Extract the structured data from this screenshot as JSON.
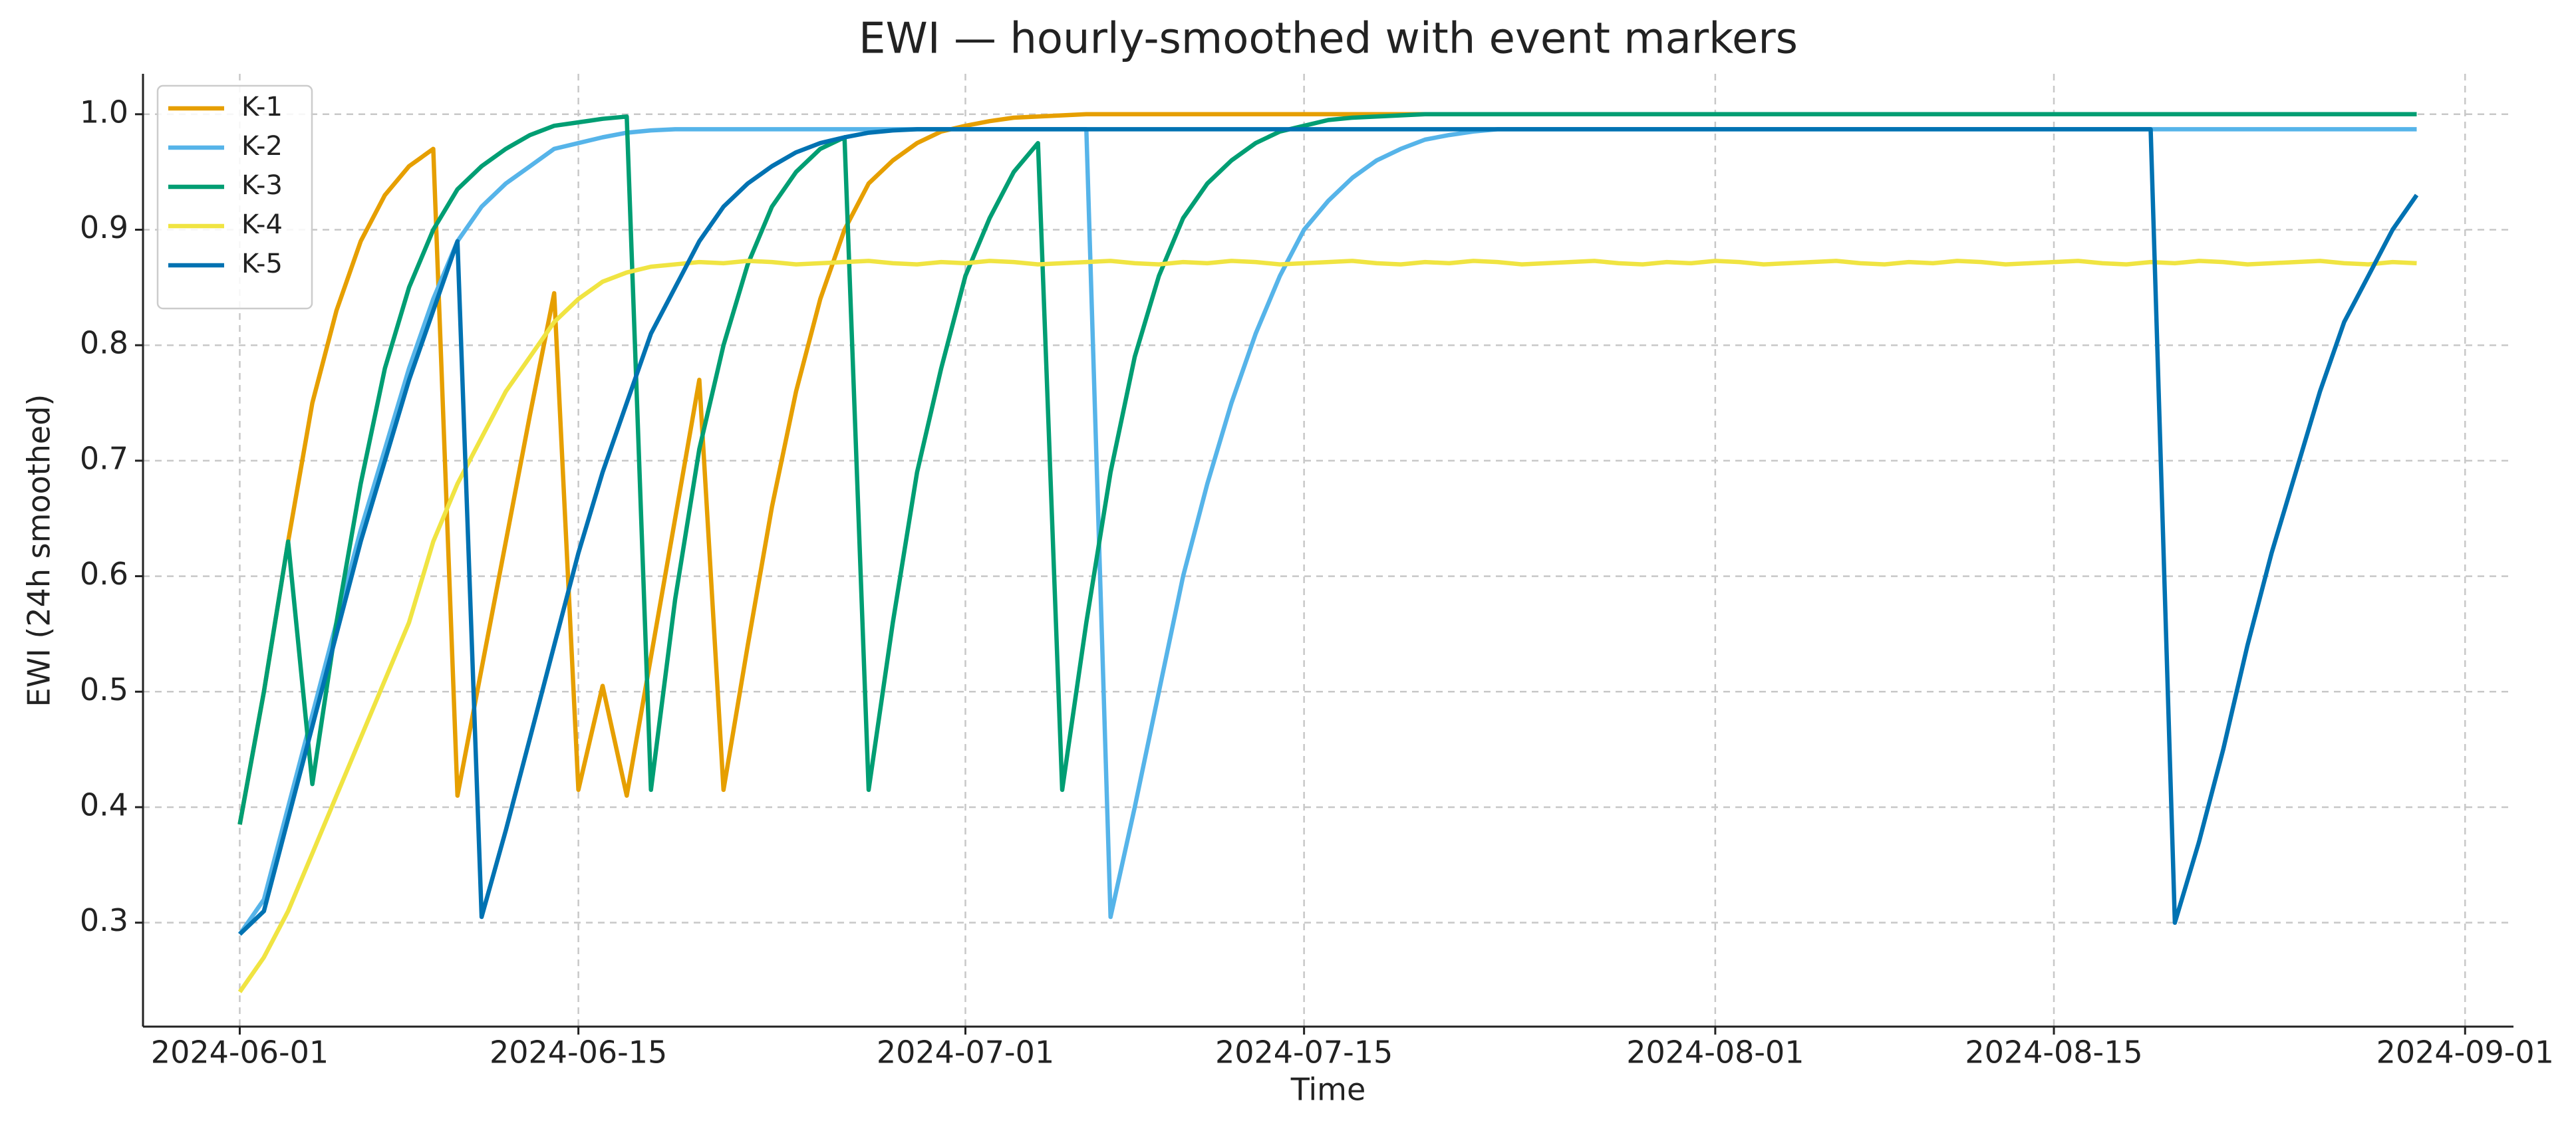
{
  "chart_data": {
    "type": "line",
    "title": "EWI — hourly-smoothed with event markers",
    "x_label": "Time",
    "y_label": "EWI (24h smoothed)",
    "x": [
      "2024-06-01",
      "2024-06-02",
      "2024-06-03",
      "2024-06-04",
      "2024-06-05",
      "2024-06-06",
      "2024-06-07",
      "2024-06-08",
      "2024-06-09",
      "2024-06-10",
      "2024-06-11",
      "2024-06-12",
      "2024-06-13",
      "2024-06-14",
      "2024-06-15",
      "2024-06-16",
      "2024-06-17",
      "2024-06-18",
      "2024-06-19",
      "2024-06-20",
      "2024-06-21",
      "2024-06-22",
      "2024-06-23",
      "2024-06-24",
      "2024-06-25",
      "2024-06-26",
      "2024-06-27",
      "2024-06-28",
      "2024-06-29",
      "2024-06-30",
      "2024-07-01",
      "2024-07-02",
      "2024-07-03",
      "2024-07-04",
      "2024-07-05",
      "2024-07-06",
      "2024-07-07",
      "2024-07-08",
      "2024-07-09",
      "2024-07-10",
      "2024-07-11",
      "2024-07-12",
      "2024-07-13",
      "2024-07-14",
      "2024-07-15",
      "2024-07-16",
      "2024-07-17",
      "2024-07-18",
      "2024-07-19",
      "2024-07-20",
      "2024-07-21",
      "2024-07-22",
      "2024-07-23",
      "2024-07-24",
      "2024-07-25",
      "2024-07-26",
      "2024-07-27",
      "2024-07-28",
      "2024-07-29",
      "2024-07-30",
      "2024-07-31",
      "2024-08-01",
      "2024-08-02",
      "2024-08-03",
      "2024-08-04",
      "2024-08-05",
      "2024-08-06",
      "2024-08-07",
      "2024-08-08",
      "2024-08-09",
      "2024-08-10",
      "2024-08-11",
      "2024-08-12",
      "2024-08-13",
      "2024-08-14",
      "2024-08-15",
      "2024-08-16",
      "2024-08-17",
      "2024-08-18",
      "2024-08-19",
      "2024-08-20",
      "2024-08-21",
      "2024-08-22",
      "2024-08-23",
      "2024-08-24",
      "2024-08-25",
      "2024-08-26",
      "2024-08-27",
      "2024-08-28",
      "2024-08-29",
      "2024-08-30"
    ],
    "series": [
      {
        "name": "K-1",
        "color": "#E69F00",
        "values": [
          0.385,
          0.5,
          0.63,
          0.75,
          0.83,
          0.89,
          0.93,
          0.955,
          0.97,
          0.41,
          0.52,
          0.63,
          0.74,
          0.845,
          0.415,
          0.505,
          0.41,
          0.53,
          0.65,
          0.77,
          0.415,
          0.54,
          0.66,
          0.76,
          0.84,
          0.9,
          0.94,
          0.96,
          0.975,
          0.985,
          0.99,
          0.994,
          0.997,
          0.998,
          0.999,
          1,
          1,
          1,
          1,
          1,
          1,
          1,
          1,
          1,
          1,
          1,
          1,
          1,
          1,
          1,
          1,
          1,
          1,
          1,
          1,
          1,
          1,
          1,
          1,
          1,
          1,
          1,
          1,
          1,
          1,
          1,
          1,
          1,
          1,
          1,
          1,
          1,
          1,
          1,
          1,
          1,
          1,
          1,
          1,
          1,
          1,
          1,
          1,
          1,
          1,
          1,
          1,
          1,
          1,
          1,
          1
        ]
      },
      {
        "name": "K-2",
        "color": "#56B4E9",
        "values": [
          0.29,
          0.32,
          0.4,
          0.48,
          0.56,
          0.64,
          0.71,
          0.78,
          0.84,
          0.89,
          0.92,
          0.94,
          0.955,
          0.97,
          0.975,
          0.98,
          0.984,
          0.986,
          0.987,
          0.987,
          0.987,
          0.987,
          0.987,
          0.987,
          0.987,
          0.987,
          0.987,
          0.987,
          0.987,
          0.987,
          0.987,
          0.987,
          0.987,
          0.987,
          0.987,
          0.987,
          0.305,
          0.4,
          0.5,
          0.6,
          0.68,
          0.75,
          0.81,
          0.86,
          0.9,
          0.925,
          0.945,
          0.96,
          0.97,
          0.978,
          0.982,
          0.985,
          0.987,
          0.987,
          0.987,
          0.987,
          0.987,
          0.987,
          0.987,
          0.987,
          0.987,
          0.987,
          0.987,
          0.987,
          0.987,
          0.987,
          0.987,
          0.987,
          0.987,
          0.987,
          0.987,
          0.987,
          0.987,
          0.987,
          0.987,
          0.987,
          0.987,
          0.987,
          0.987,
          0.987,
          0.987,
          0.987,
          0.987,
          0.987,
          0.987,
          0.987,
          0.987,
          0.987,
          0.987,
          0.987,
          0.987
        ]
      },
      {
        "name": "K-3",
        "color": "#009E73",
        "values": [
          0.385,
          0.5,
          0.63,
          0.42,
          0.56,
          0.68,
          0.78,
          0.85,
          0.9,
          0.935,
          0.955,
          0.97,
          0.982,
          0.99,
          0.993,
          0.996,
          0.998,
          0.415,
          0.58,
          0.71,
          0.8,
          0.87,
          0.92,
          0.95,
          0.97,
          0.98,
          0.415,
          0.56,
          0.69,
          0.78,
          0.86,
          0.91,
          0.95,
          0.975,
          0.415,
          0.56,
          0.69,
          0.79,
          0.86,
          0.91,
          0.94,
          0.96,
          0.975,
          0.985,
          0.99,
          0.995,
          0.997,
          0.998,
          0.999,
          1,
          1,
          1,
          1,
          1,
          1,
          1,
          1,
          1,
          1,
          1,
          1,
          1,
          1,
          1,
          1,
          1,
          1,
          1,
          1,
          1,
          1,
          1,
          1,
          1,
          1,
          1,
          1,
          1,
          1,
          1,
          1,
          1,
          1,
          1,
          1,
          1,
          1,
          1,
          1,
          1,
          1
        ]
      },
      {
        "name": "K-4",
        "color": "#F0E442",
        "values": [
          0.24,
          0.27,
          0.31,
          0.36,
          0.41,
          0.46,
          0.51,
          0.56,
          0.63,
          0.68,
          0.72,
          0.76,
          0.79,
          0.82,
          0.84,
          0.855,
          0.863,
          0.868,
          0.87,
          0.872,
          0.871,
          0.873,
          0.872,
          0.87,
          0.871,
          0.872,
          0.873,
          0.871,
          0.87,
          0.872,
          0.871,
          0.873,
          0.872,
          0.87,
          0.871,
          0.872,
          0.873,
          0.871,
          0.87,
          0.872,
          0.871,
          0.873,
          0.872,
          0.87,
          0.871,
          0.872,
          0.873,
          0.871,
          0.87,
          0.872,
          0.871,
          0.873,
          0.872,
          0.87,
          0.871,
          0.872,
          0.873,
          0.871,
          0.87,
          0.872,
          0.871,
          0.873,
          0.872,
          0.87,
          0.871,
          0.872,
          0.873,
          0.871,
          0.87,
          0.872,
          0.871,
          0.873,
          0.872,
          0.87,
          0.871,
          0.872,
          0.873,
          0.871,
          0.87,
          0.872,
          0.871,
          0.873,
          0.872,
          0.87,
          0.871,
          0.872,
          0.873,
          0.871,
          0.87,
          0.872,
          0.871
        ]
      },
      {
        "name": "K-5",
        "color": "#0072B2",
        "values": [
          0.29,
          0.31,
          0.39,
          0.47,
          0.55,
          0.63,
          0.7,
          0.77,
          0.83,
          0.89,
          0.305,
          0.38,
          0.46,
          0.54,
          0.62,
          0.69,
          0.75,
          0.81,
          0.85,
          0.89,
          0.92,
          0.94,
          0.955,
          0.967,
          0.975,
          0.98,
          0.984,
          0.986,
          0.987,
          0.987,
          0.987,
          0.987,
          0.987,
          0.987,
          0.987,
          0.987,
          0.987,
          0.987,
          0.987,
          0.987,
          0.987,
          0.987,
          0.987,
          0.987,
          0.987,
          0.987,
          0.987,
          0.987,
          0.987,
          0.987,
          0.987,
          0.987,
          0.987,
          0.987,
          0.987,
          0.987,
          0.987,
          0.987,
          0.987,
          0.987,
          0.987,
          0.987,
          0.987,
          0.987,
          0.987,
          0.987,
          0.987,
          0.987,
          0.987,
          0.987,
          0.987,
          0.987,
          0.987,
          0.987,
          0.987,
          0.987,
          0.987,
          0.987,
          0.987,
          0.987,
          0.3,
          0.37,
          0.45,
          0.54,
          0.62,
          0.69,
          0.76,
          0.82,
          0.86,
          0.9,
          0.93
        ]
      }
    ],
    "xlim": [
      "2024-05-28",
      "2024-09-03"
    ],
    "xticks": [
      "2024-06-01",
      "2024-06-15",
      "2024-07-01",
      "2024-07-15",
      "2024-08-01",
      "2024-08-15",
      "2024-09-01"
    ],
    "ylim": [
      0.21,
      1.035
    ],
    "yticks": [
      0.3,
      0.4,
      0.5,
      0.6,
      0.7,
      0.8,
      0.9,
      {
        "value": 1,
        "label": "1.0"
      }
    ],
    "grid": true,
    "legend": "upper left"
  }
}
